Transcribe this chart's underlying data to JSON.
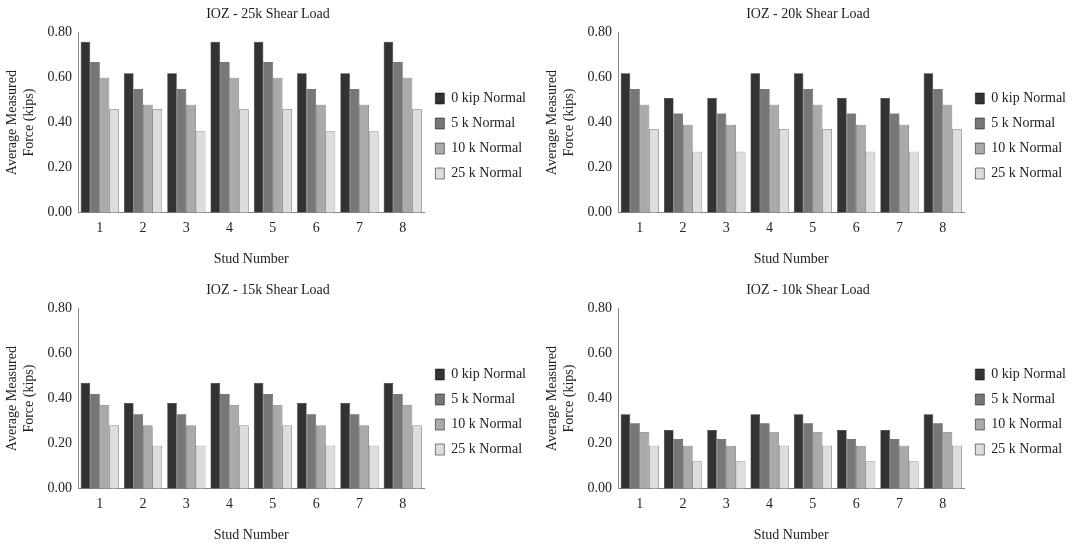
{
  "chart_data": [
    {
      "type": "bar",
      "title": "IOZ - 25k Shear Load",
      "xlabel": "Stud Number",
      "ylabel": "Average Measured Force (kips)",
      "categories": [
        "1",
        "2",
        "3",
        "4",
        "5",
        "6",
        "7",
        "8"
      ],
      "series": [
        {
          "name": "0 kip Normal",
          "color": "#333333",
          "values": [
            0.76,
            0.62,
            0.62,
            0.76,
            0.76,
            0.62,
            0.62,
            0.76
          ]
        },
        {
          "name": "5 k Normal",
          "color": "#777777",
          "values": [
            0.67,
            0.55,
            0.55,
            0.67,
            0.67,
            0.55,
            0.55,
            0.67
          ]
        },
        {
          "name": "10 k Normal",
          "color": "#aaaaaa",
          "values": [
            0.6,
            0.48,
            0.48,
            0.6,
            0.6,
            0.48,
            0.48,
            0.6
          ]
        },
        {
          "name": "25 k Normal",
          "color": "#dddddd",
          "values": [
            0.46,
            0.46,
            0.36,
            0.46,
            0.46,
            0.36,
            0.36,
            0.46
          ]
        }
      ],
      "ylim": [
        0,
        0.8
      ],
      "yticks": [
        {
          "value": 0,
          "label": "0.00"
        },
        {
          "value": 0.2,
          "label": "0.20"
        },
        {
          "value": 0.4,
          "label": "0.40"
        },
        {
          "value": 0.6,
          "label": "0.60"
        },
        {
          "value": 0.8,
          "label": "0.80"
        }
      ],
      "legend": "right",
      "grid": false
    },
    {
      "type": "bar",
      "title": "IOZ - 20k Shear Load",
      "xlabel": "Stud Number",
      "ylabel": "Average Measured Force (kips)",
      "categories": [
        "1",
        "2",
        "3",
        "4",
        "5",
        "6",
        "7",
        "8"
      ],
      "series": [
        {
          "name": "0 kip Normal",
          "color": "#333333",
          "values": [
            0.62,
            0.51,
            0.51,
            0.62,
            0.62,
            0.51,
            0.51,
            0.62
          ]
        },
        {
          "name": "5 k Normal",
          "color": "#777777",
          "values": [
            0.55,
            0.44,
            0.44,
            0.55,
            0.55,
            0.44,
            0.44,
            0.55
          ]
        },
        {
          "name": "10 k Normal",
          "color": "#aaaaaa",
          "values": [
            0.48,
            0.39,
            0.39,
            0.48,
            0.48,
            0.39,
            0.39,
            0.48
          ]
        },
        {
          "name": "25 k Normal",
          "color": "#dddddd",
          "values": [
            0.37,
            0.27,
            0.27,
            0.37,
            0.37,
            0.27,
            0.27,
            0.37
          ]
        }
      ],
      "ylim": [
        0,
        0.8
      ],
      "yticks": [
        {
          "value": 0,
          "label": "0.00"
        },
        {
          "value": 0.2,
          "label": "0.20"
        },
        {
          "value": 0.4,
          "label": "0.40"
        },
        {
          "value": 0.6,
          "label": "0.60"
        },
        {
          "value": 0.8,
          "label": "0.80"
        }
      ],
      "legend": "right",
      "grid": false
    },
    {
      "type": "bar",
      "title": "IOZ - 15k Shear Load",
      "xlabel": "Stud Number",
      "ylabel": "Average Measured Force (kips)",
      "categories": [
        "1",
        "2",
        "3",
        "4",
        "5",
        "6",
        "7",
        "8"
      ],
      "series": [
        {
          "name": "0 kip Normal",
          "color": "#333333",
          "values": [
            0.47,
            0.38,
            0.38,
            0.47,
            0.47,
            0.38,
            0.38,
            0.47
          ]
        },
        {
          "name": "5 k Normal",
          "color": "#777777",
          "values": [
            0.42,
            0.33,
            0.33,
            0.42,
            0.42,
            0.33,
            0.33,
            0.42
          ]
        },
        {
          "name": "10 k Normal",
          "color": "#aaaaaa",
          "values": [
            0.37,
            0.28,
            0.28,
            0.37,
            0.37,
            0.28,
            0.28,
            0.37
          ]
        },
        {
          "name": "25 k Normal",
          "color": "#dddddd",
          "values": [
            0.28,
            0.19,
            0.19,
            0.28,
            0.28,
            0.19,
            0.19,
            0.28
          ]
        }
      ],
      "ylim": [
        0,
        0.8
      ],
      "yticks": [
        {
          "value": 0,
          "label": "0.00"
        },
        {
          "value": 0.2,
          "label": "0.20"
        },
        {
          "value": 0.4,
          "label": "0.40"
        },
        {
          "value": 0.6,
          "label": "0.60"
        },
        {
          "value": 0.8,
          "label": "0.80"
        }
      ],
      "legend": "right",
      "grid": false
    },
    {
      "type": "bar",
      "title": "IOZ - 10k Shear Load",
      "xlabel": "Stud Number",
      "ylabel": "Average Measured Force (kips)",
      "categories": [
        "1",
        "2",
        "3",
        "4",
        "5",
        "6",
        "7",
        "8"
      ],
      "series": [
        {
          "name": "0 kip Normal",
          "color": "#333333",
          "values": [
            0.33,
            0.26,
            0.26,
            0.33,
            0.33,
            0.26,
            0.26,
            0.33
          ]
        },
        {
          "name": "5 k Normal",
          "color": "#777777",
          "values": [
            0.29,
            0.22,
            0.22,
            0.29,
            0.29,
            0.22,
            0.22,
            0.29
          ]
        },
        {
          "name": "10 k Normal",
          "color": "#aaaaaa",
          "values": [
            0.25,
            0.19,
            0.19,
            0.25,
            0.25,
            0.19,
            0.19,
            0.25
          ]
        },
        {
          "name": "25 k Normal",
          "color": "#dddddd",
          "values": [
            0.19,
            0.12,
            0.12,
            0.19,
            0.19,
            0.12,
            0.12,
            0.19
          ]
        }
      ],
      "ylim": [
        0,
        0.8
      ],
      "yticks": [
        {
          "value": 0,
          "label": "0.00"
        },
        {
          "value": 0.2,
          "label": "0.20"
        },
        {
          "value": 0.4,
          "label": "0.40"
        },
        {
          "value": 0.6,
          "label": "0.60"
        },
        {
          "value": 0.8,
          "label": "0.80"
        }
      ],
      "legend": "right",
      "grid": false
    }
  ]
}
